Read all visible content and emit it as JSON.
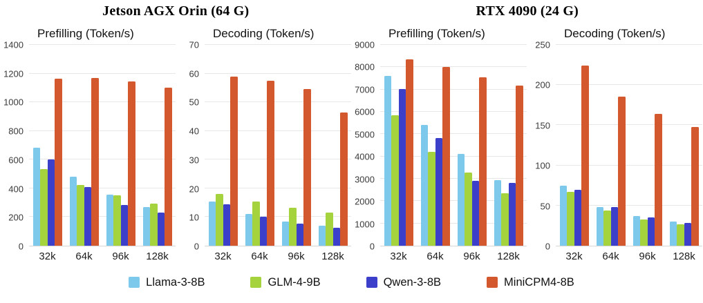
{
  "device_groups": [
    {
      "title": "Jetson AGX Orin (64 G)"
    },
    {
      "title": "RTX 4090 (24 G)"
    }
  ],
  "legend": [
    {
      "label": "Llama-3-8B",
      "color": "#7dc9ec"
    },
    {
      "label": "GLM-4-9B",
      "color": "#a5d33e"
    },
    {
      "label": "Qwen-3-8B",
      "color": "#3b3fc9"
    },
    {
      "label": "MiniCPM4-8B",
      "color": "#d4582e"
    }
  ],
  "chart_data": [
    {
      "type": "bar",
      "device": "Jetson AGX Orin (64 G)",
      "subtitle": "Prefilling (Token/s)",
      "categories": [
        "32k",
        "64k",
        "96k",
        "128k"
      ],
      "ylim": [
        0,
        1400
      ],
      "ystep": 200,
      "grid": true,
      "series": [
        {
          "name": "Llama-3-8B",
          "color": "#7dc9ec",
          "values": [
            685,
            480,
            355,
            270
          ]
        },
        {
          "name": "GLM-4-9B",
          "color": "#a5d33e",
          "values": [
            535,
            425,
            350,
            295
          ]
        },
        {
          "name": "Qwen-3-8B",
          "color": "#3b3fc9",
          "values": [
            600,
            410,
            285,
            230
          ]
        },
        {
          "name": "MiniCPM4-8B",
          "color": "#d4582e",
          "values": [
            1165,
            1170,
            1145,
            1100
          ]
        }
      ]
    },
    {
      "type": "bar",
      "device": "Jetson AGX Orin (64 G)",
      "subtitle": "Decoding (Token/s)",
      "categories": [
        "32k",
        "64k",
        "96k",
        "128k"
      ],
      "ylim": [
        0,
        70
      ],
      "ystep": 10,
      "grid": true,
      "series": [
        {
          "name": "Llama-3-8B",
          "color": "#7dc9ec",
          "values": [
            15.5,
            11,
            8.5,
            7
          ]
        },
        {
          "name": "GLM-4-9B",
          "color": "#a5d33e",
          "values": [
            18,
            15.3,
            13.2,
            11.5
          ]
        },
        {
          "name": "Qwen-3-8B",
          "color": "#3b3fc9",
          "values": [
            14.5,
            10,
            7.6,
            6.2
          ]
        },
        {
          "name": "MiniCPM4-8B",
          "color": "#d4582e",
          "values": [
            59,
            57.5,
            54.5,
            46.5
          ]
        }
      ]
    },
    {
      "type": "bar",
      "device": "RTX 4090 (24 G)",
      "subtitle": "Prefilling (Token/s)",
      "categories": [
        "32k",
        "64k",
        "96k",
        "128k"
      ],
      "ylim": [
        0,
        9000
      ],
      "ystep": 1000,
      "grid": true,
      "series": [
        {
          "name": "Llama-3-8B",
          "color": "#7dc9ec",
          "values": [
            7600,
            5400,
            4100,
            2950
          ]
        },
        {
          "name": "GLM-4-9B",
          "color": "#a5d33e",
          "values": [
            5850,
            4220,
            3270,
            2350
          ]
        },
        {
          "name": "Qwen-3-8B",
          "color": "#3b3fc9",
          "values": [
            7020,
            4820,
            2920,
            2800
          ]
        },
        {
          "name": "MiniCPM4-8B",
          "color": "#d4582e",
          "values": [
            8350,
            8000,
            7550,
            7170
          ]
        }
      ]
    },
    {
      "type": "bar",
      "device": "RTX 4090 (24 G)",
      "subtitle": "Decoding (Token/s)",
      "categories": [
        "32k",
        "64k",
        "96k",
        "128k"
      ],
      "ylim": [
        0,
        250
      ],
      "ystep": 50,
      "grid": true,
      "series": [
        {
          "name": "Llama-3-8B",
          "color": "#7dc9ec",
          "values": [
            75,
            48,
            37,
            30
          ]
        },
        {
          "name": "GLM-4-9B",
          "color": "#a5d33e",
          "values": [
            67,
            44,
            33,
            27
          ]
        },
        {
          "name": "Qwen-3-8B",
          "color": "#3b3fc9",
          "values": [
            70,
            48,
            35,
            28
          ]
        },
        {
          "name": "MiniCPM4-8B",
          "color": "#d4582e",
          "values": [
            224,
            186,
            164,
            148
          ]
        }
      ]
    }
  ]
}
